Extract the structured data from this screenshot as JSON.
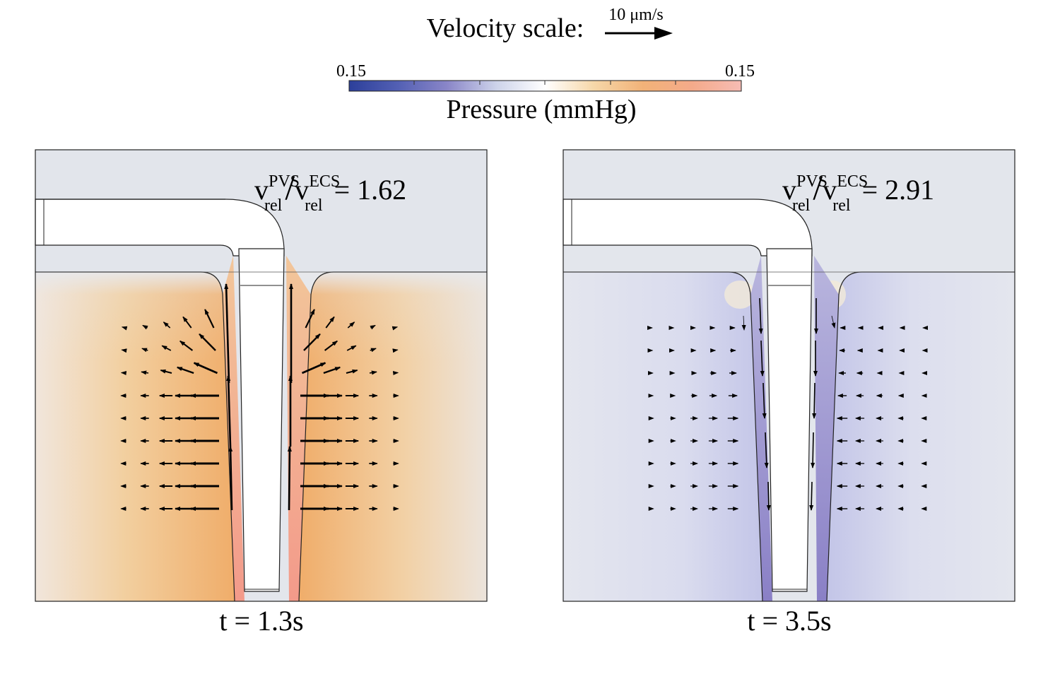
{
  "legend": {
    "velocity_label": "Velocity scale:",
    "velocity_scale_value": "10 μm/s",
    "colorbar_min": "0.15",
    "colorbar_max": "0.15",
    "colorbar_title": "Pressure (mmHg)",
    "colorbar_colors": [
      "#2c3f9a",
      "#5360b4",
      "#8a86c8",
      "#cdd3ea",
      "#ffffff",
      "#f6d7a8",
      "#f2b278",
      "#f4aa8a",
      "#f7bcb4"
    ]
  },
  "panels": [
    {
      "id": "left",
      "ratio_var_num": "v",
      "ratio_num_sup": "PVS",
      "ratio_num_sub": "rel",
      "ratio_var_den": "v",
      "ratio_den_sup": "ECS",
      "ratio_den_sub": "rel",
      "ratio_value": "= 1.62",
      "time_label": "t = 1.3s",
      "flow_direction": "up",
      "tissue_color": "#f0ad6a",
      "gap_color": "#f4a08e",
      "background_color": "#e3e6ec"
    },
    {
      "id": "right",
      "ratio_var_num": "v",
      "ratio_num_sup": "PVS",
      "ratio_num_sub": "rel",
      "ratio_var_den": "v",
      "ratio_den_sup": "ECS",
      "ratio_den_sub": "rel",
      "ratio_value": "= 2.91",
      "time_label": "t = 3.5s",
      "flow_direction": "down",
      "tissue_color": "#c7cbe8",
      "gap_color": "#8f86c9",
      "background_color": "#e3e6ec"
    }
  ]
}
